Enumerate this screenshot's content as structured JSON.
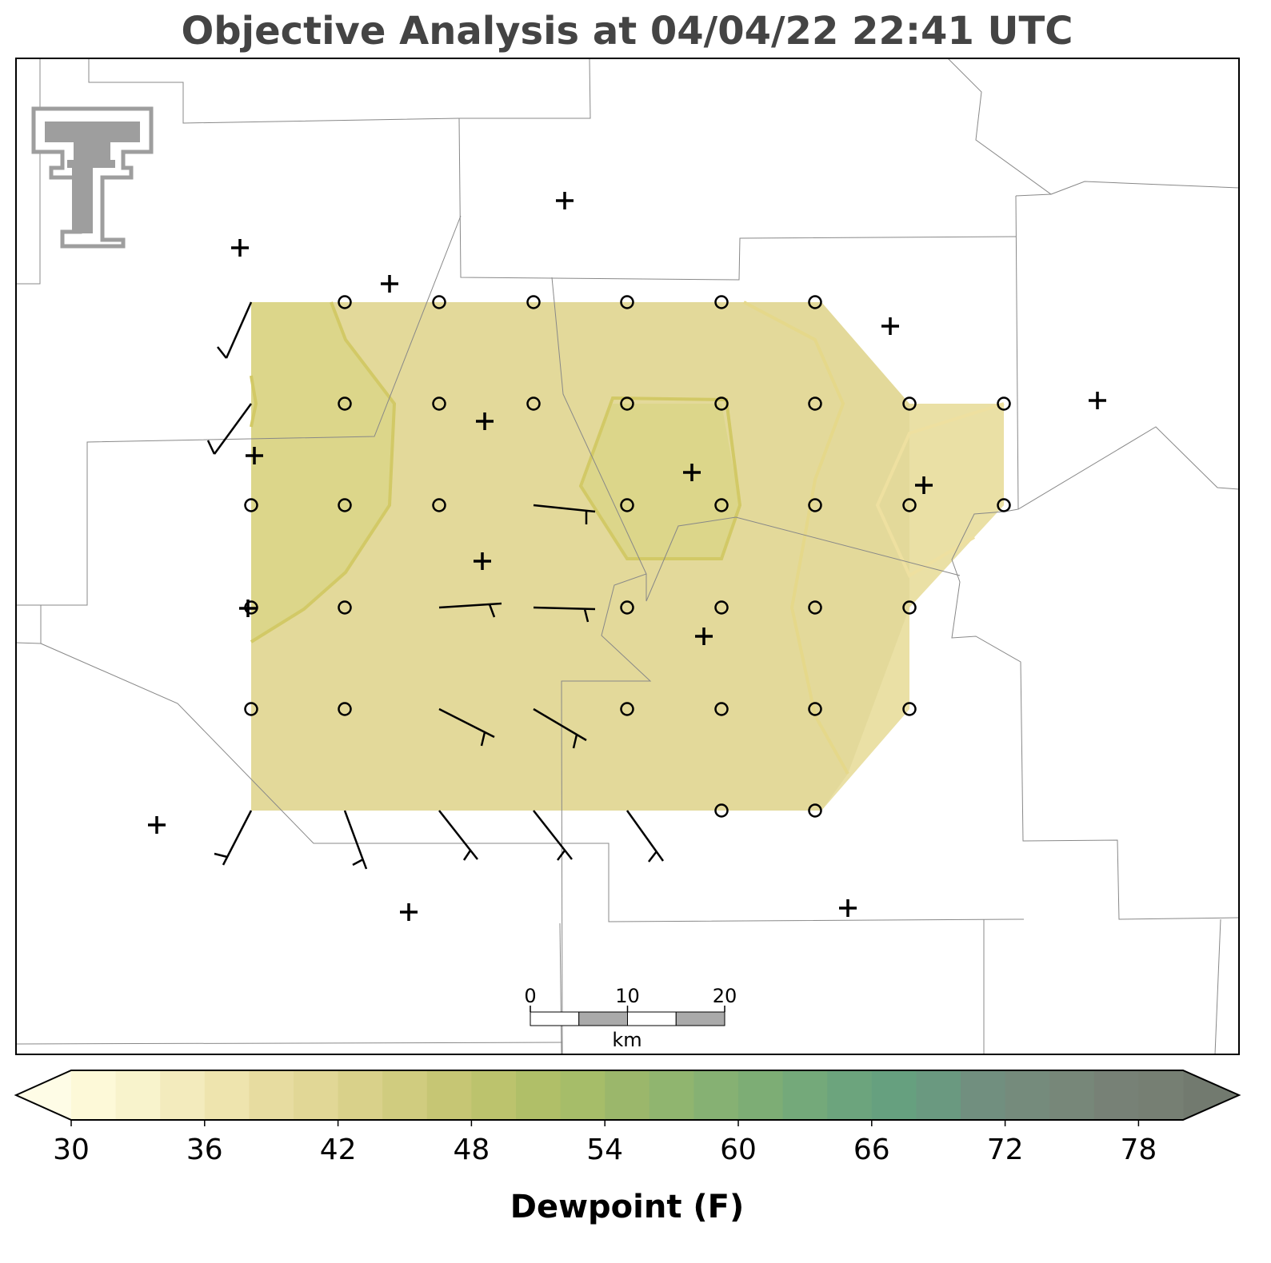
{
  "title": "Objective Analysis at 04/04/22 22:41 UTC",
  "colorbar": {
    "label": "Dewpoint (F)",
    "lim": [
      30,
      80
    ],
    "extend": "both",
    "ticks": [
      30,
      36,
      42,
      48,
      54,
      60,
      66,
      72,
      78
    ],
    "under_color": "#fefce6",
    "over_color": "#727a6f",
    "colors": [
      "#fdf9d8",
      "#f8f3cc",
      "#f3ebbd",
      "#eee4ae",
      "#e7dca0",
      "#e1d796",
      "#d9d18a",
      "#d0cc7f",
      "#c6c674",
      "#bcc36d",
      "#b0bf68",
      "#a6bd69",
      "#9bb76b",
      "#90b56f",
      "#86b173",
      "#7dad75",
      "#74a97a",
      "#6ca47d",
      "#66a07f",
      "#6a9980",
      "#718f7f",
      "#758b7c",
      "#778779",
      "#778176",
      "#767f73"
    ]
  },
  "scale_bar": {
    "ticks": [
      0,
      10,
      20
    ],
    "lim": [
      0,
      20
    ],
    "unit": "km"
  }
}
